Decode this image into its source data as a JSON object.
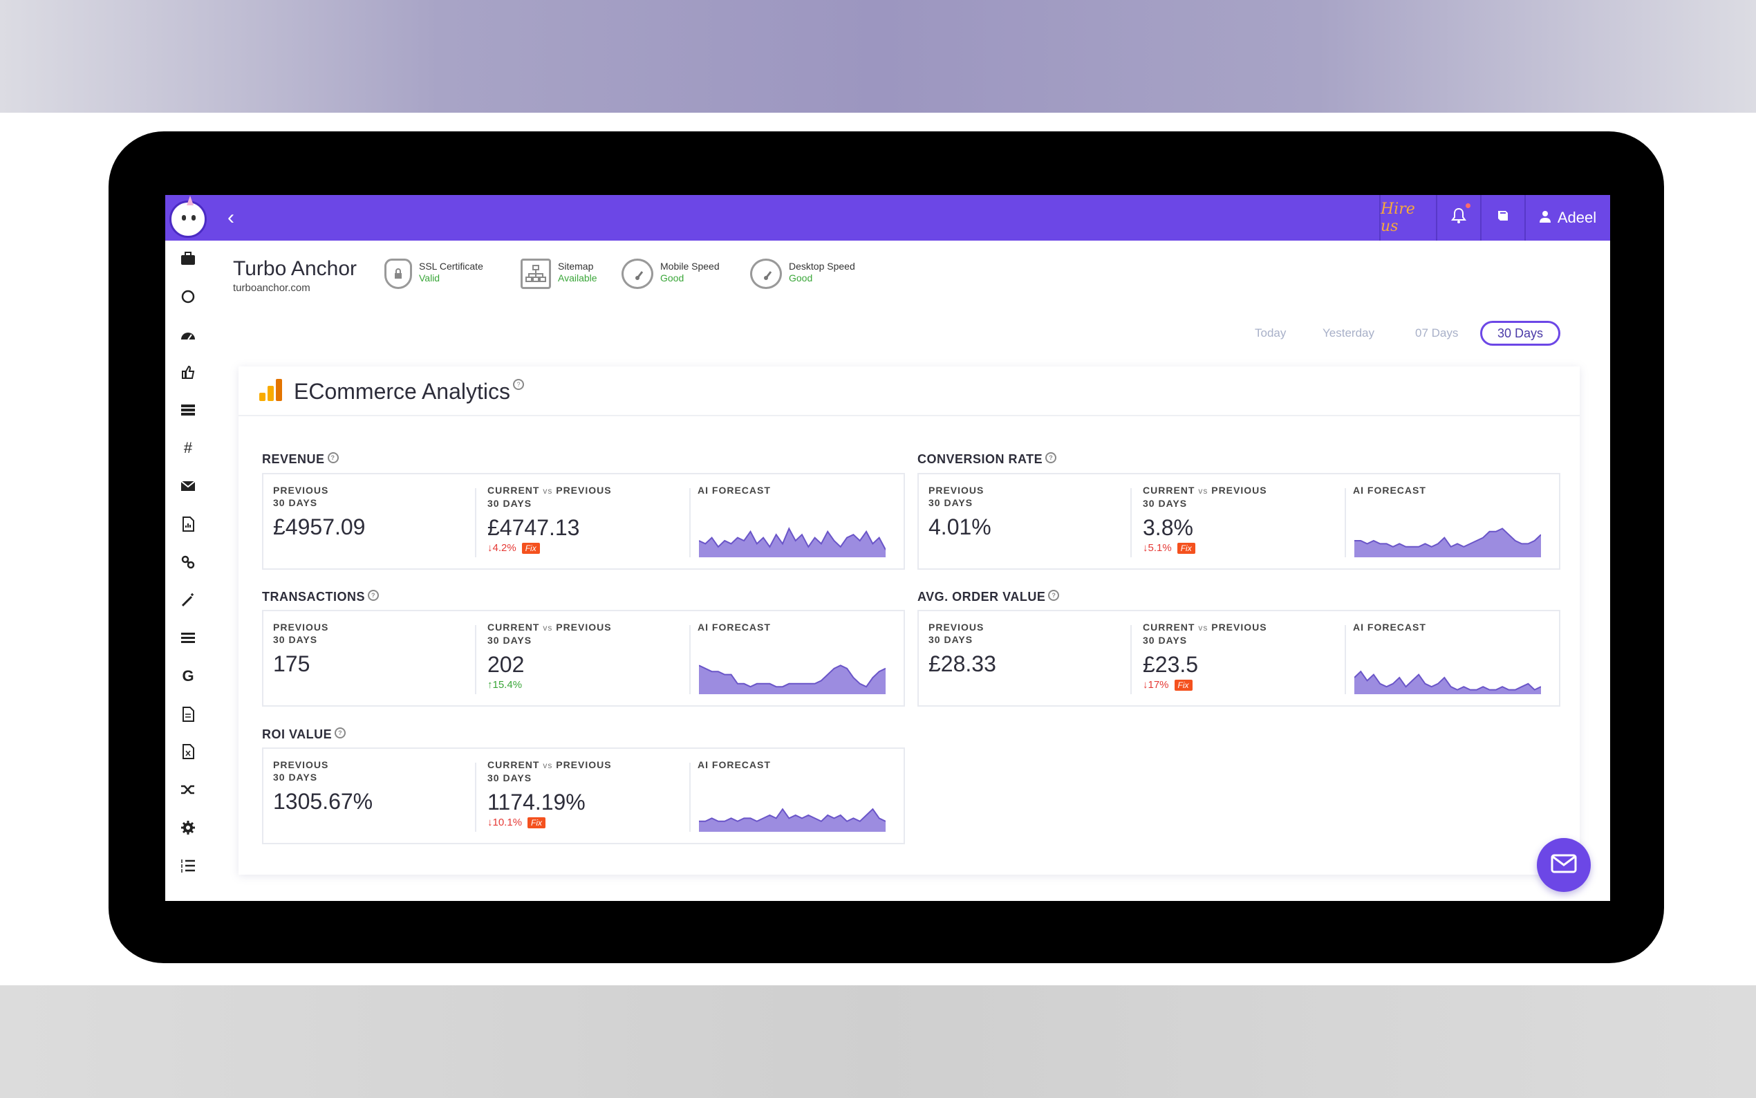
{
  "header": {
    "hire_label": "Hire us",
    "user_name": "Adeel"
  },
  "site": {
    "name": "Turbo Anchor",
    "url": "turboanchor.com"
  },
  "status": [
    {
      "label": "SSL Certificate",
      "value": "Valid",
      "icon": "shield-lock-icon"
    },
    {
      "label": "Sitemap",
      "value": "Available",
      "icon": "sitemap-icon"
    },
    {
      "label": "Mobile Speed",
      "value": "Good",
      "icon": "speedometer-icon"
    },
    {
      "label": "Desktop Speed",
      "value": "Good",
      "icon": "speedometer-icon"
    }
  ],
  "date_range": {
    "options": [
      "Today",
      "Yesterday",
      "07 Days",
      "30 Days"
    ],
    "selected": "30 Days"
  },
  "panel": {
    "title": "ECommerce Analytics"
  },
  "labels": {
    "previous": "PREVIOUS",
    "period": "30 DAYS",
    "current": "CURRENT",
    "vs": "vs",
    "prev_short": "PREVIOUS",
    "forecast": "AI FORECAST",
    "fix": "Fix"
  },
  "metrics": {
    "revenue": {
      "title": "REVENUE",
      "previous": "£4957.09",
      "current": "£4747.13",
      "change": "4.2%",
      "direction": "down",
      "fix": true,
      "forecast": [
        5,
        4,
        6,
        3,
        5,
        4,
        6,
        5,
        8,
        4,
        6,
        3,
        7,
        4,
        9,
        5,
        7,
        3,
        6,
        4,
        8,
        5,
        3,
        6,
        7,
        5,
        8,
        4,
        6,
        2
      ]
    },
    "conversion_rate": {
      "title": "CONVERSION RATE",
      "previous": "4.01%",
      "current": "3.8%",
      "change": "5.1%",
      "direction": "down",
      "fix": true,
      "forecast": [
        5,
        5,
        4,
        5,
        4,
        4,
        3,
        4,
        3,
        3,
        3,
        4,
        3,
        4,
        6,
        3,
        4,
        3,
        4,
        5,
        6,
        8,
        8,
        9,
        7,
        5,
        4,
        4,
        5,
        7
      ]
    },
    "transactions": {
      "title": "TRANSACTIONS",
      "previous": "175",
      "current": "202",
      "change": "15.4%",
      "direction": "up",
      "fix": false,
      "forecast": [
        9,
        8,
        7,
        7,
        6,
        6,
        3,
        3,
        2,
        3,
        3,
        3,
        2,
        2,
        3,
        3,
        3,
        3,
        3,
        4,
        6,
        8,
        9,
        8,
        5,
        3,
        2,
        5,
        7,
        8
      ]
    },
    "avg_order_value": {
      "title": "AVG. ORDER VALUE",
      "previous": "£28.33",
      "current": "£23.5",
      "change": "17%",
      "direction": "down",
      "fix": true,
      "forecast": [
        5,
        7,
        4,
        6,
        3,
        2,
        3,
        5,
        2,
        4,
        6,
        3,
        2,
        3,
        5,
        2,
        1,
        2,
        1,
        1,
        2,
        1,
        1,
        2,
        1,
        1,
        2,
        3,
        1,
        2
      ]
    },
    "roi_value": {
      "title": "ROI VALUE",
      "previous": "1305.67%",
      "current": "1174.19%",
      "change": "10.1%",
      "direction": "down",
      "fix": true,
      "forecast": [
        3,
        3,
        4,
        3,
        3,
        4,
        3,
        4,
        4,
        3,
        4,
        5,
        4,
        7,
        4,
        5,
        4,
        5,
        4,
        3,
        5,
        4,
        5,
        3,
        4,
        3,
        5,
        7,
        4,
        3
      ]
    }
  },
  "colors": {
    "brand": "#6c47e6",
    "spark_fill": "#9c8ce0",
    "spark_line": "#6a55c8",
    "down": "#e53935",
    "up": "#3aa639",
    "fix": "#f4511e"
  }
}
